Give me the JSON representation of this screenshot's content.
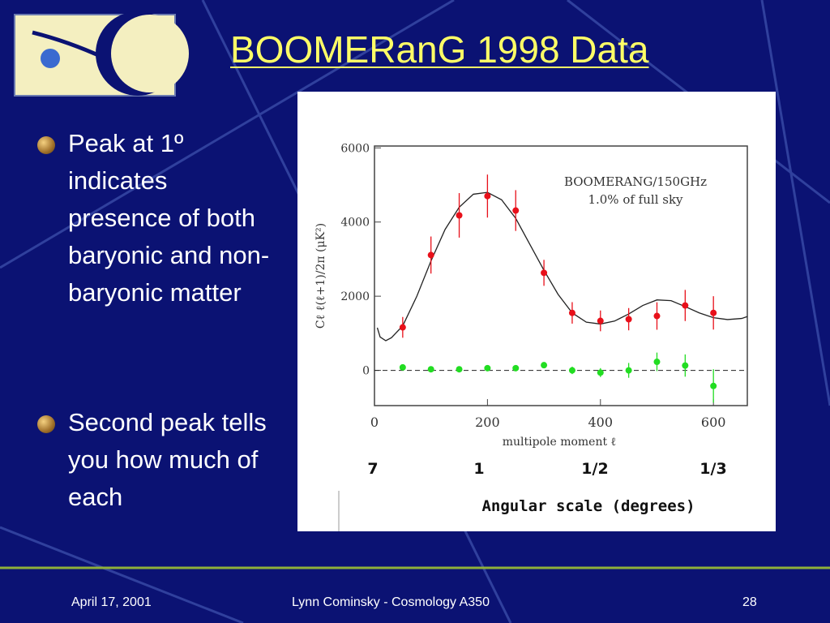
{
  "slide": {
    "title": "BOOMERanG 1998 Data",
    "bullets": [
      "Peak at 1º indicates presence of both baryonic and non-baryonic matter",
      "Second peak tells you how much of each"
    ],
    "footer": {
      "date": "April 17, 2001",
      "author": "Lynn Cominsky - Cosmology A350",
      "page": "28"
    }
  },
  "chart_data": {
    "type": "scatter",
    "xlabel": "multipole moment ℓ",
    "ylabel": "Cℓ ℓ(ℓ+1)/2π  (μK²)",
    "annotations": [
      "BOOMERANG/150GHz",
      "1.0% of full sky"
    ],
    "xlim": [
      0,
      660
    ],
    "ylim": [
      -950,
      6050
    ],
    "xticks": [
      0,
      200,
      400,
      600
    ],
    "yticks": [
      0,
      2000,
      4000,
      6000
    ],
    "zero_line": true,
    "angular_scale": {
      "label": "Angular scale (degrees)",
      "ticks": [
        "7",
        "1",
        "1/2",
        "1/3"
      ]
    },
    "series": [
      {
        "color": "#222222",
        "line": true,
        "x": [
          5,
          10,
          20,
          30,
          50,
          75,
          100,
          125,
          150,
          175,
          200,
          225,
          250,
          275,
          300,
          325,
          350,
          375,
          400,
          425,
          450,
          475,
          500,
          525,
          550,
          575,
          600,
          625,
          650,
          660
        ],
        "values": [
          1150,
          900,
          800,
          880,
          1200,
          2000,
          2950,
          3800,
          4400,
          4750,
          4800,
          4600,
          4100,
          3400,
          2700,
          2050,
          1550,
          1300,
          1250,
          1330,
          1520,
          1750,
          1900,
          1880,
          1720,
          1550,
          1420,
          1370,
          1400,
          1450
        ]
      },
      {
        "color": "#e8101a",
        "x": [
          50,
          100,
          150,
          200,
          250,
          300,
          350,
          400,
          450,
          500,
          550,
          600
        ],
        "values": [
          1160,
          3110,
          4180,
          4700,
          4310,
          2630,
          1550,
          1335,
          1380,
          1466,
          1750,
          1550
        ],
        "errors": [
          280,
          500,
          600,
          580,
          550,
          350,
          290,
          280,
          300,
          370,
          420,
          450
        ]
      },
      {
        "color": "#22dd22",
        "x": [
          50,
          100,
          150,
          200,
          250,
          300,
          350,
          400,
          450,
          500,
          550,
          600
        ],
        "values": [
          80,
          30,
          30,
          60,
          60,
          140,
          0,
          -60,
          0,
          230,
          130,
          -420
        ],
        "errors": [
          60,
          60,
          60,
          60,
          60,
          80,
          100,
          120,
          200,
          250,
          300,
          450
        ]
      }
    ]
  }
}
